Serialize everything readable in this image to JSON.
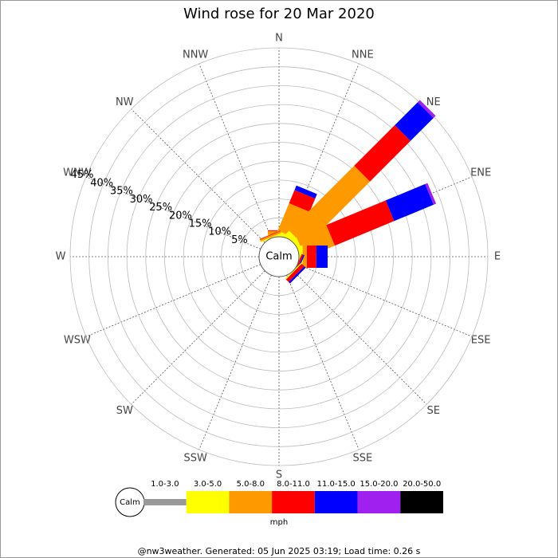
{
  "chart_data": {
    "type": "wind-rose",
    "title": "Wind rose for 20 Mar 2020",
    "directions": [
      "N",
      "NNE",
      "NE",
      "ENE",
      "E",
      "ESE",
      "SE",
      "SSE",
      "S",
      "SSW",
      "SW",
      "WSW",
      "W",
      "WNW",
      "NW",
      "NNW"
    ],
    "calm_label": "Calm",
    "rlim": [
      0,
      50
    ],
    "rticks": [
      {
        "value": 5,
        "label": "5%"
      },
      {
        "value": 10,
        "label": "10%"
      },
      {
        "value": 15,
        "label": "15%"
      },
      {
        "value": 20,
        "label": "20%"
      },
      {
        "value": 25,
        "label": "25%"
      },
      {
        "value": 30,
        "label": "30%"
      },
      {
        "value": 35,
        "label": "35%"
      },
      {
        "value": 40,
        "label": "40%"
      },
      {
        "value": 45,
        "label": "45%"
      }
    ],
    "series": [
      {
        "name": "1.0-3.0",
        "color": "#999999",
        "values": [
          0,
          0,
          0,
          0,
          0,
          0,
          0,
          0,
          0,
          0,
          0,
          0,
          0,
          0,
          0,
          0
        ]
      },
      {
        "name": "3.0-5.0",
        "color": "#ffff00",
        "values": [
          0.5,
          1,
          1.5,
          1,
          1,
          0,
          0.3,
          0,
          0,
          0,
          0,
          0,
          0,
          0,
          0,
          0.3
        ]
      },
      {
        "name": "5.0-8.0",
        "color": "#ff9900",
        "values": [
          1,
          7.8,
          24.3,
          8.5,
          1.1,
          0,
          0,
          0,
          0,
          0,
          0,
          0,
          0,
          0,
          0,
          0.5
        ]
      },
      {
        "name": "8.0-11.0",
        "color": "#ff0000",
        "values": [
          0.2,
          3.8,
          15.2,
          17,
          2.5,
          0.5,
          1,
          0,
          0,
          0,
          0,
          0,
          0,
          0,
          0,
          0.2
        ]
      },
      {
        "name": "11.0-15.0",
        "color": "#0000ff",
        "values": [
          0,
          1.3,
          8.6,
          11.3,
          3,
          0.3,
          0.5,
          0,
          0,
          0,
          0,
          0,
          0,
          0,
          0,
          0
        ]
      },
      {
        "name": "15.0-20.0",
        "color": "#a020f0",
        "values": [
          0,
          0,
          0.8,
          0.7,
          0,
          0,
          0,
          0,
          0,
          0,
          0,
          0,
          0,
          0,
          0,
          0
        ]
      },
      {
        "name": "20.0-50.0",
        "color": "#000000",
        "values": [
          0,
          0,
          0,
          0,
          0,
          0,
          0,
          0,
          0,
          0,
          0,
          0,
          0,
          0,
          0,
          0
        ]
      }
    ],
    "legend_unit": "mph",
    "footer": "@nw3weather.  Generated: 05 Jun 2025 03:19; Load time: 0.26 s"
  }
}
